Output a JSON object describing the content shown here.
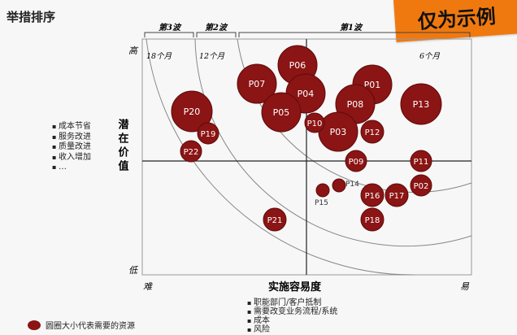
{
  "title": "举措排序",
  "banner": "仅为示例",
  "waves": [
    {
      "label": "第3波",
      "period": "18个月"
    },
    {
      "label": "第2波",
      "period": "12个月"
    },
    {
      "label": "第1波",
      "period": "6个月"
    }
  ],
  "axes": {
    "y_label": "潜在价值",
    "y_high": "高",
    "y_low": "低",
    "x_label": "实施容易度",
    "x_hard": "难",
    "x_easy": "易"
  },
  "side_notes": [
    "成本节省",
    "服务改进",
    "质量改进",
    "收入增加",
    "…"
  ],
  "bottom_notes": [
    "职能部门/客户抵制",
    "需要改变业务流程/系统",
    "成本",
    "风险"
  ],
  "legend": "圆圈大小代表需要的资源",
  "colors": {
    "bubble": "#8b1414",
    "bubble_edge": "#5e0b0b",
    "banner": "#f0790f"
  },
  "bubbles": [
    {
      "id": "P06",
      "size": "large"
    },
    {
      "id": "P07",
      "size": "large"
    },
    {
      "id": "P04",
      "size": "large"
    },
    {
      "id": "P05",
      "size": "large"
    },
    {
      "id": "P01",
      "size": "large"
    },
    {
      "id": "P08",
      "size": "large"
    },
    {
      "id": "P13",
      "size": "large"
    },
    {
      "id": "P20",
      "size": "large"
    },
    {
      "id": "P03",
      "size": "large"
    },
    {
      "id": "P10",
      "size": "small"
    },
    {
      "id": "P12",
      "size": "small"
    },
    {
      "id": "P19",
      "size": "small"
    },
    {
      "id": "P22",
      "size": "small"
    },
    {
      "id": "P09",
      "size": "small"
    },
    {
      "id": "P11",
      "size": "small"
    },
    {
      "id": "P02",
      "size": "small"
    },
    {
      "id": "P16",
      "size": "small"
    },
    {
      "id": "P17",
      "size": "small"
    },
    {
      "id": "P18",
      "size": "small"
    },
    {
      "id": "P21",
      "size": "small"
    },
    {
      "id": "P14",
      "size": "tiny"
    },
    {
      "id": "P15",
      "size": "tiny"
    }
  ]
}
